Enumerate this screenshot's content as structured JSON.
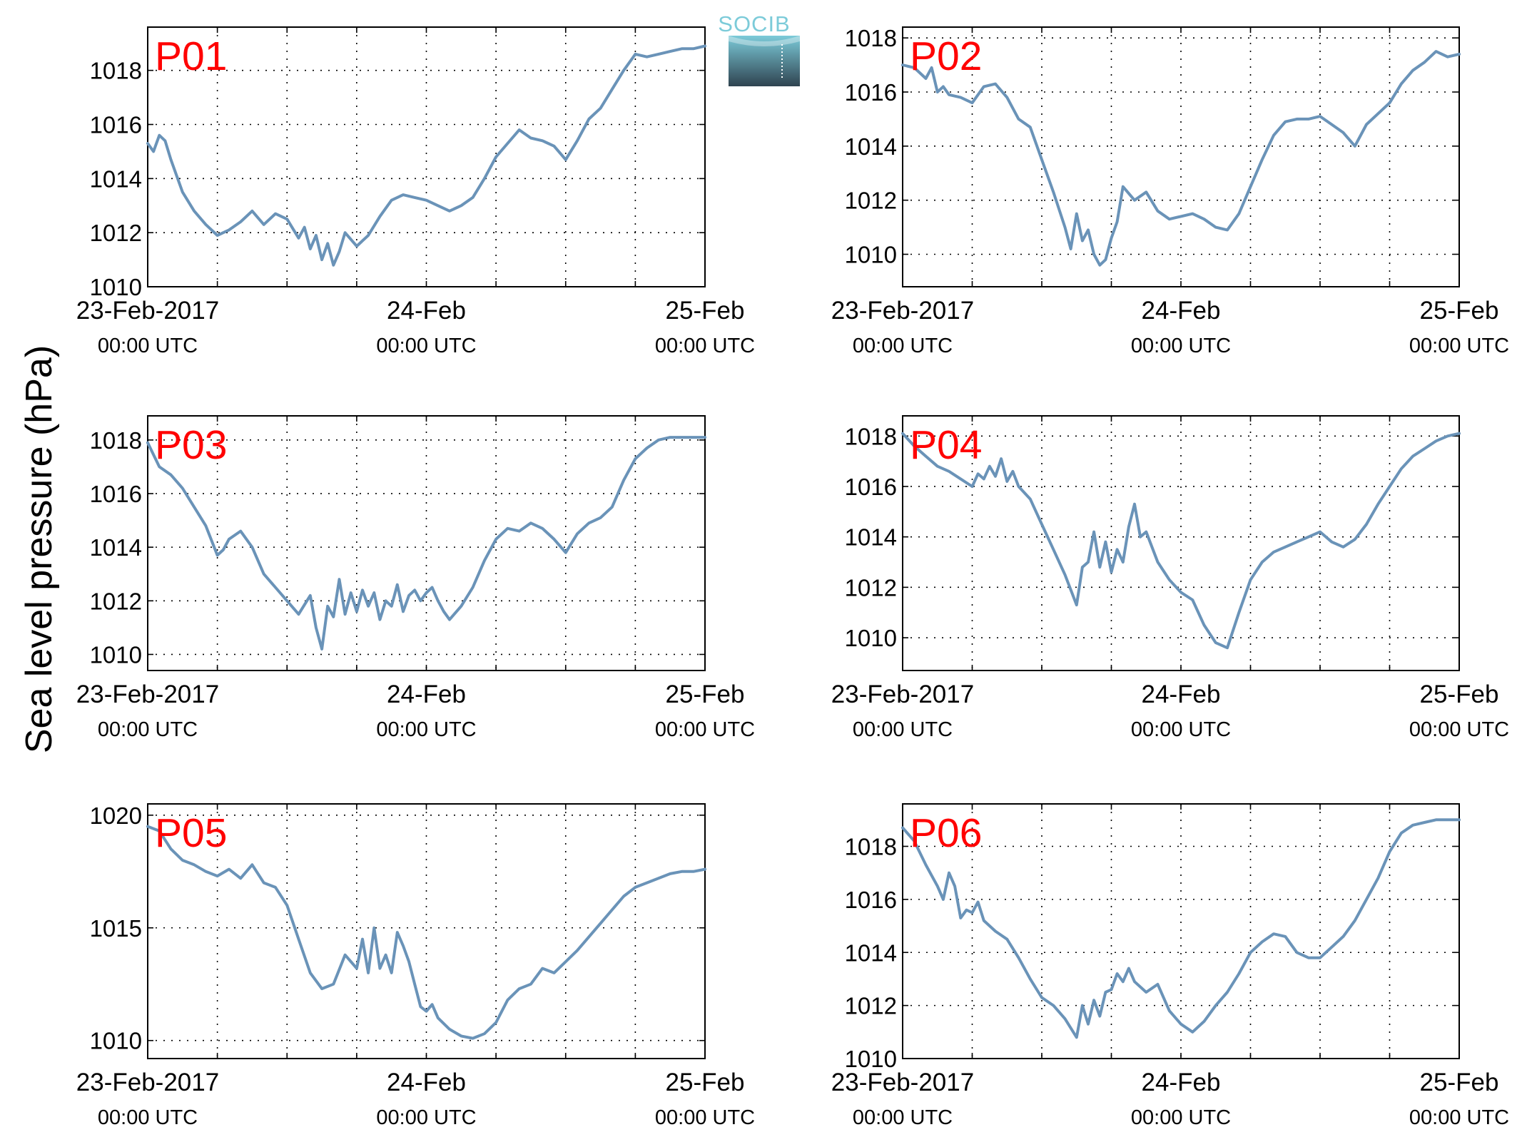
{
  "figure": {
    "ylabel": "Sea level pressure (hPa)",
    "logo": "SOCIB"
  },
  "colors": {
    "series": "#6a93b8",
    "panel_label": "#ff0000",
    "logo_top": "#7ccbd9",
    "logo_bottom": "#2f4350"
  },
  "chart_data": [
    {
      "type": "line",
      "panel_label": "P01",
      "xlabel": "",
      "ylabel": "Sea level pressure (hPa)",
      "x_range_hours": [
        0,
        48
      ],
      "ylim": [
        1010,
        1019.6
      ],
      "yticks": [
        1010,
        1012,
        1014,
        1016,
        1018
      ],
      "xticks": [
        {
          "hours": 0,
          "date": "23-Feb-2017",
          "time": "00:00 UTC"
        },
        {
          "hours": 24,
          "date": "24-Feb",
          "time": "00:00 UTC"
        },
        {
          "hours": 48,
          "date": "25-Feb",
          "time": "00:00 UTC"
        }
      ],
      "grid": true,
      "series": [
        {
          "x": [
            0,
            0.5,
            1,
            1.5,
            2,
            3,
            4,
            5,
            6,
            6.5,
            7,
            8,
            9,
            10,
            11,
            12,
            13,
            13.5,
            14,
            14.5,
            15,
            15.5,
            16,
            16.5,
            17,
            18,
            19,
            20,
            21,
            22,
            23,
            24,
            25,
            26,
            27,
            28,
            29,
            30,
            31,
            32,
            33,
            34,
            35,
            36,
            37,
            38,
            39,
            40,
            41,
            42,
            43,
            44,
            45,
            46,
            47,
            48
          ],
          "y": [
            1015.3,
            1015.0,
            1015.6,
            1015.4,
            1014.7,
            1013.5,
            1012.8,
            1012.3,
            1011.9,
            1012.0,
            1012.1,
            1012.4,
            1012.8,
            1012.3,
            1012.7,
            1012.5,
            1011.8,
            1012.2,
            1011.4,
            1011.9,
            1011.0,
            1011.6,
            1010.8,
            1011.3,
            1012.0,
            1011.5,
            1011.9,
            1012.6,
            1013.2,
            1013.4,
            1013.3,
            1013.2,
            1013.0,
            1012.8,
            1013.0,
            1013.3,
            1014.0,
            1014.8,
            1015.3,
            1015.8,
            1015.5,
            1015.4,
            1015.2,
            1014.7,
            1015.4,
            1016.2,
            1016.6,
            1017.3,
            1018.0,
            1018.6,
            1018.5,
            1018.6,
            1018.7,
            1018.8,
            1018.8,
            1018.9
          ]
        }
      ]
    },
    {
      "type": "line",
      "panel_label": "P02",
      "xlabel": "",
      "ylabel": "Sea level pressure (hPa)",
      "x_range_hours": [
        0,
        48
      ],
      "ylim": [
        1008.8,
        1018.4
      ],
      "yticks": [
        1010,
        1012,
        1014,
        1016,
        1018
      ],
      "xticks": [
        {
          "hours": 0,
          "date": "23-Feb-2017",
          "time": "00:00 UTC"
        },
        {
          "hours": 24,
          "date": "24-Feb",
          "time": "00:00 UTC"
        },
        {
          "hours": 48,
          "date": "25-Feb",
          "time": "00:00 UTC"
        }
      ],
      "grid": true,
      "series": [
        {
          "x": [
            0,
            1,
            2,
            2.5,
            3,
            3.5,
            4,
            5,
            6,
            7,
            8,
            9,
            10,
            11,
            12,
            13,
            14,
            14.5,
            15,
            15.5,
            16,
            16.5,
            17,
            17.5,
            18,
            18.5,
            19,
            20,
            21,
            22,
            23,
            24,
            25,
            26,
            27,
            28,
            29,
            30,
            31,
            32,
            33,
            34,
            35,
            36,
            37,
            38,
            39,
            40,
            41,
            42,
            43,
            44,
            45,
            46,
            47,
            48
          ],
          "y": [
            1017.0,
            1016.9,
            1016.5,
            1016.9,
            1016.0,
            1016.2,
            1015.9,
            1015.8,
            1015.6,
            1016.2,
            1016.3,
            1015.8,
            1015.0,
            1014.7,
            1013.5,
            1012.3,
            1011.0,
            1010.2,
            1011.5,
            1010.5,
            1010.9,
            1010.0,
            1009.6,
            1009.8,
            1010.6,
            1011.2,
            1012.5,
            1012.0,
            1012.3,
            1011.6,
            1011.3,
            1011.4,
            1011.5,
            1011.3,
            1011.0,
            1010.9,
            1011.5,
            1012.5,
            1013.5,
            1014.4,
            1014.9,
            1015.0,
            1015.0,
            1015.1,
            1014.8,
            1014.5,
            1014.0,
            1014.8,
            1015.2,
            1015.6,
            1016.3,
            1016.8,
            1017.1,
            1017.5,
            1017.3,
            1017.4
          ]
        }
      ]
    },
    {
      "type": "line",
      "panel_label": "P03",
      "xlabel": "",
      "ylabel": "Sea level pressure (hPa)",
      "x_range_hours": [
        0,
        48
      ],
      "ylim": [
        1009.4,
        1018.9
      ],
      "yticks": [
        1010,
        1012,
        1014,
        1016,
        1018
      ],
      "xticks": [
        {
          "hours": 0,
          "date": "23-Feb-2017",
          "time": "00:00 UTC"
        },
        {
          "hours": 24,
          "date": "24-Feb",
          "time": "00:00 UTC"
        },
        {
          "hours": 48,
          "date": "25-Feb",
          "time": "00:00 UTC"
        }
      ],
      "grid": true,
      "series": [
        {
          "x": [
            0,
            1,
            2,
            3,
            4,
            5,
            6,
            6.5,
            7,
            8,
            9,
            10,
            11,
            12,
            13,
            14,
            14.5,
            15,
            15.5,
            16,
            16.5,
            17,
            17.5,
            18,
            18.5,
            19,
            19.5,
            20,
            20.5,
            21,
            21.5,
            22,
            22.5,
            23,
            23.5,
            24,
            24.5,
            25,
            25.5,
            26,
            27,
            28,
            29,
            30,
            31,
            32,
            33,
            34,
            35,
            36,
            37,
            38,
            39,
            40,
            41,
            42,
            43,
            44,
            45,
            46,
            47,
            48
          ],
          "y": [
            1017.9,
            1017.0,
            1016.7,
            1016.2,
            1015.5,
            1014.8,
            1013.7,
            1013.9,
            1014.3,
            1014.6,
            1014.0,
            1013.0,
            1012.5,
            1012.0,
            1011.5,
            1012.2,
            1011.0,
            1010.2,
            1011.8,
            1011.4,
            1012.8,
            1011.5,
            1012.3,
            1011.6,
            1012.4,
            1011.8,
            1012.3,
            1011.3,
            1012.0,
            1011.8,
            1012.6,
            1011.6,
            1012.2,
            1012.4,
            1012.0,
            1012.3,
            1012.5,
            1012.0,
            1011.6,
            1011.3,
            1011.8,
            1012.5,
            1013.5,
            1014.3,
            1014.7,
            1014.6,
            1014.9,
            1014.7,
            1014.3,
            1013.8,
            1014.5,
            1014.9,
            1015.1,
            1015.5,
            1016.5,
            1017.3,
            1017.7,
            1018.0,
            1018.1,
            1018.1,
            1018.1,
            1018.1
          ]
        }
      ]
    },
    {
      "type": "line",
      "panel_label": "P04",
      "xlabel": "",
      "ylabel": "Sea level pressure (hPa)",
      "x_range_hours": [
        0,
        48
      ],
      "ylim": [
        1008.7,
        1018.8
      ],
      "yticks": [
        1010,
        1012,
        1014,
        1016,
        1018
      ],
      "xticks": [
        {
          "hours": 0,
          "date": "23-Feb-2017",
          "time": "00:00 UTC"
        },
        {
          "hours": 24,
          "date": "24-Feb",
          "time": "00:00 UTC"
        },
        {
          "hours": 48,
          "date": "25-Feb",
          "time": "00:00 UTC"
        }
      ],
      "grid": true,
      "series": [
        {
          "x": [
            0,
            1,
            2,
            3,
            4,
            5,
            6,
            6.5,
            7,
            7.5,
            8,
            8.5,
            9,
            9.5,
            10,
            11,
            12,
            13,
            14,
            15,
            15.5,
            16,
            16.5,
            17,
            17.5,
            18,
            18.5,
            19,
            19.5,
            20,
            20.5,
            21,
            22,
            23,
            24,
            25,
            26,
            27,
            28,
            29,
            30,
            31,
            32,
            33,
            34,
            35,
            36,
            37,
            38,
            39,
            40,
            41,
            42,
            43,
            44,
            45,
            46,
            47,
            48
          ],
          "y": [
            1018.1,
            1017.6,
            1017.2,
            1016.8,
            1016.6,
            1016.3,
            1016.0,
            1016.5,
            1016.3,
            1016.8,
            1016.4,
            1017.1,
            1016.2,
            1016.6,
            1016.0,
            1015.5,
            1014.5,
            1013.5,
            1012.5,
            1011.3,
            1012.8,
            1013.0,
            1014.2,
            1012.8,
            1013.8,
            1012.6,
            1013.5,
            1013.0,
            1014.4,
            1015.3,
            1014.0,
            1014.2,
            1013.0,
            1012.3,
            1011.8,
            1011.5,
            1010.5,
            1009.8,
            1009.6,
            1011.0,
            1012.3,
            1013.0,
            1013.4,
            1013.6,
            1013.8,
            1014.0,
            1014.2,
            1013.8,
            1013.6,
            1013.9,
            1014.5,
            1015.3,
            1016.0,
            1016.7,
            1017.2,
            1017.5,
            1017.8,
            1018.0,
            1018.1
          ]
        }
      ]
    },
    {
      "type": "line",
      "panel_label": "P05",
      "xlabel": "",
      "ylabel": "Sea level pressure (hPa)",
      "x_range_hours": [
        0,
        48
      ],
      "ylim": [
        1009.2,
        1020.5
      ],
      "yticks": [
        1010,
        1015,
        1020
      ],
      "xticks": [
        {
          "hours": 0,
          "date": "23-Feb-2017",
          "time": "00:00 UTC"
        },
        {
          "hours": 24,
          "date": "24-Feb",
          "time": "00:00 UTC"
        },
        {
          "hours": 48,
          "date": "25-Feb",
          "time": "00:00 UTC"
        }
      ],
      "grid": true,
      "series": [
        {
          "x": [
            0,
            1,
            2,
            3,
            4,
            5,
            6,
            7,
            8,
            9,
            10,
            11,
            12,
            13,
            14,
            15,
            16,
            17,
            18,
            18.5,
            19,
            19.5,
            20,
            20.5,
            21,
            21.5,
            22,
            22.5,
            23,
            23.5,
            24,
            24.5,
            25,
            26,
            27,
            28,
            29,
            30,
            31,
            32,
            33,
            34,
            35,
            36,
            37,
            38,
            39,
            40,
            41,
            42,
            43,
            44,
            45,
            46,
            47,
            48
          ],
          "y": [
            1019.5,
            1019.3,
            1018.5,
            1018.0,
            1017.8,
            1017.5,
            1017.3,
            1017.6,
            1017.2,
            1017.8,
            1017.0,
            1016.8,
            1016.0,
            1014.5,
            1013.0,
            1012.3,
            1012.5,
            1013.8,
            1013.2,
            1014.5,
            1013.0,
            1015.0,
            1013.2,
            1013.8,
            1013.0,
            1014.8,
            1014.2,
            1013.5,
            1012.5,
            1011.5,
            1011.3,
            1011.6,
            1011.0,
            1010.5,
            1010.2,
            1010.1,
            1010.3,
            1010.8,
            1011.8,
            1012.3,
            1012.5,
            1013.2,
            1013.0,
            1013.5,
            1014.0,
            1014.6,
            1015.2,
            1015.8,
            1016.4,
            1016.8,
            1017.0,
            1017.2,
            1017.4,
            1017.5,
            1017.5,
            1017.6
          ]
        }
      ]
    },
    {
      "type": "line",
      "panel_label": "P06",
      "xlabel": "",
      "ylabel": "Sea level pressure (hPa)",
      "x_range_hours": [
        0,
        48
      ],
      "ylim": [
        1010,
        1019.6
      ],
      "yticks": [
        1010,
        1012,
        1014,
        1016,
        1018
      ],
      "xticks": [
        {
          "hours": 0,
          "date": "23-Feb-2017",
          "time": "00:00 UTC"
        },
        {
          "hours": 24,
          "date": "24-Feb",
          "time": "00:00 UTC"
        },
        {
          "hours": 48,
          "date": "25-Feb",
          "time": "00:00 UTC"
        }
      ],
      "grid": true,
      "series": [
        {
          "x": [
            0,
            1,
            2,
            3,
            3.5,
            4,
            4.5,
            5,
            5.5,
            6,
            6.5,
            7,
            8,
            9,
            10,
            11,
            12,
            13,
            14,
            15,
            15.5,
            16,
            16.5,
            17,
            17.5,
            18,
            18.5,
            19,
            19.5,
            20,
            21,
            22,
            23,
            24,
            25,
            26,
            27,
            28,
            29,
            30,
            31,
            32,
            33,
            34,
            35,
            36,
            37,
            38,
            39,
            40,
            41,
            42,
            43,
            44,
            45,
            46,
            47,
            48
          ],
          "y": [
            1018.7,
            1018.2,
            1017.3,
            1016.5,
            1016.0,
            1017.0,
            1016.5,
            1015.3,
            1015.6,
            1015.5,
            1015.9,
            1015.2,
            1014.8,
            1014.5,
            1013.8,
            1013.0,
            1012.3,
            1012.0,
            1011.5,
            1010.8,
            1012.0,
            1011.3,
            1012.2,
            1011.6,
            1012.5,
            1012.6,
            1013.2,
            1012.9,
            1013.4,
            1012.9,
            1012.5,
            1012.8,
            1011.8,
            1011.3,
            1011.0,
            1011.4,
            1012.0,
            1012.5,
            1013.2,
            1014.0,
            1014.4,
            1014.7,
            1014.6,
            1014.0,
            1013.8,
            1013.8,
            1014.2,
            1014.6,
            1015.2,
            1016.0,
            1016.8,
            1017.8,
            1018.5,
            1018.8,
            1018.9,
            1019.0,
            1019.0,
            1019.0
          ]
        }
      ]
    }
  ]
}
